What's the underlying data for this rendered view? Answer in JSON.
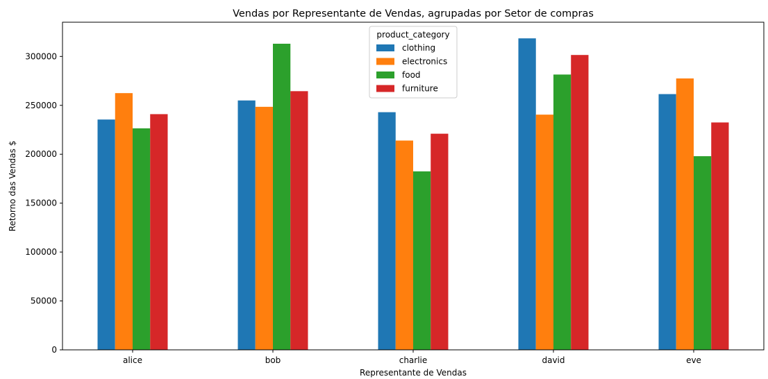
{
  "chart_data": {
    "type": "bar",
    "title": "Vendas por Representante de Vendas, agrupadas por Setor de compras",
    "xlabel": "Representante de Vendas",
    "ylabel": "Retorno das Vendas $",
    "categories": [
      "alice",
      "bob",
      "charlie",
      "david",
      "eve"
    ],
    "ylim": [
      0,
      335000
    ],
    "yticks": [
      0,
      50000,
      100000,
      150000,
      200000,
      250000,
      300000
    ],
    "grid": false,
    "legend": {
      "title": "product_category",
      "placement": "upper-center"
    },
    "series": [
      {
        "name": "clothing",
        "color": "#1f77b4",
        "values": [
          235500,
          255000,
          243000,
          318500,
          261500
        ]
      },
      {
        "name": "electronics",
        "color": "#ff7f0e",
        "values": [
          262500,
          248500,
          214000,
          240500,
          277500
        ]
      },
      {
        "name": "food",
        "color": "#2ca02c",
        "values": [
          226500,
          313000,
          182500,
          281500,
          198000
        ]
      },
      {
        "name": "furniture",
        "color": "#d62728",
        "values": [
          241000,
          264500,
          221000,
          301500,
          232500
        ]
      }
    ]
  }
}
